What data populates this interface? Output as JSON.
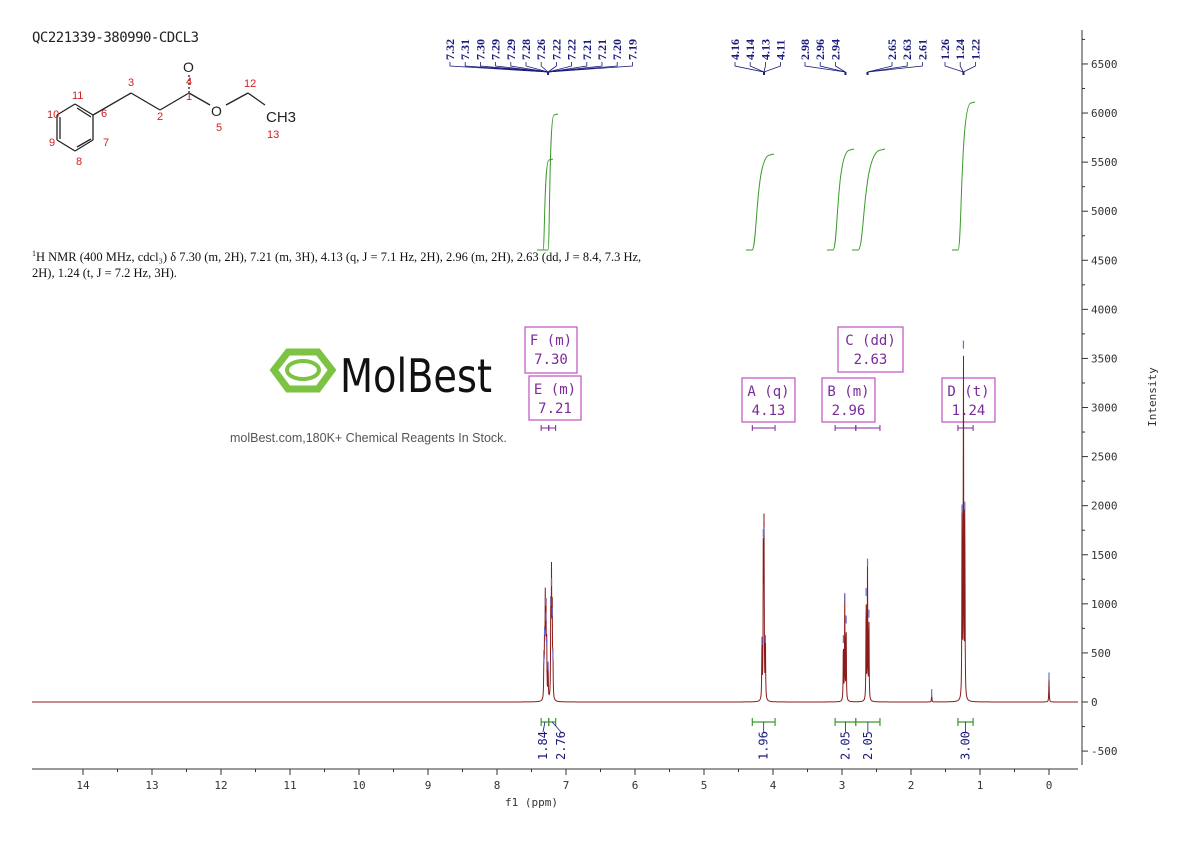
{
  "sample_id": "QC221339-380990-CDCL3",
  "nmr_description": {
    "nucleus_sup": "1",
    "text": "H NMR (400 MHz, cdcl₃) δ 7.30 (m, 2H), 7.21 (m, 3H), 4.13 (q, J = 7.1 Hz, 2H), 2.96 (m, 2H), 2.63 (dd, J = 8.4, 7.3 Hz, 2H), 1.24 (t, J = 7.2 Hz, 3H)."
  },
  "molecule": {
    "atoms": [
      "O",
      "CH3"
    ],
    "atom_numbers": [
      "1",
      "2",
      "3",
      "4",
      "5",
      "6",
      "7",
      "8",
      "9",
      "10",
      "11",
      "12",
      "13"
    ],
    "ester_oxygen": "O"
  },
  "watermark": {
    "logo": "MolBest",
    "tagline": "molBest.com,180K+ Chemical Reagents In Stock."
  },
  "colors": {
    "spectrum": "#8b1a1a",
    "integral": "#3a9a2a",
    "annotation": "#c050c0",
    "peak_label": "#1a1a7a",
    "logo": "#7cc243"
  },
  "chart_data": {
    "type": "line",
    "xlabel": "f1 (ppm)",
    "ylabel": "Intensity",
    "xlim": [
      14.75,
      -0.42
    ],
    "ylim": [
      -650,
      6800
    ],
    "x_ticks": [
      14,
      13,
      12,
      11,
      10,
      9,
      8,
      7,
      6,
      5,
      4,
      3,
      2,
      1,
      0
    ],
    "y_ticks": [
      -500,
      0,
      500,
      1000,
      1500,
      2000,
      2500,
      3000,
      3500,
      4000,
      4500,
      5000,
      5500,
      6000,
      6500
    ],
    "peaks": [
      {
        "ppm": 7.32,
        "height": 420
      },
      {
        "ppm": 7.31,
        "height": 700
      },
      {
        "ppm": 7.3,
        "height": 1000
      },
      {
        "ppm": 7.29,
        "height": 850
      },
      {
        "ppm": 7.28,
        "height": 600
      },
      {
        "ppm": 7.26,
        "height": 350
      },
      {
        "ppm": 7.22,
        "height": 1000
      },
      {
        "ppm": 7.21,
        "height": 1200
      },
      {
        "ppm": 7.2,
        "height": 900
      },
      {
        "ppm": 7.19,
        "height": 450
      },
      {
        "ppm": 4.16,
        "height": 600
      },
      {
        "ppm": 4.14,
        "height": 1700
      },
      {
        "ppm": 4.13,
        "height": 1720
      },
      {
        "ppm": 4.11,
        "height": 620
      },
      {
        "ppm": 2.98,
        "height": 620
      },
      {
        "ppm": 2.96,
        "height": 1050
      },
      {
        "ppm": 2.94,
        "height": 820
      },
      {
        "ppm": 2.65,
        "height": 1100
      },
      {
        "ppm": 2.63,
        "height": 1400
      },
      {
        "ppm": 2.61,
        "height": 880
      },
      {
        "ppm": 1.26,
        "height": 1950
      },
      {
        "ppm": 1.24,
        "height": 3620
      },
      {
        "ppm": 1.22,
        "height": 1980
      },
      {
        "ppm": 1.7,
        "height": 70
      },
      {
        "ppm": 0.0,
        "height": 240
      }
    ],
    "peak_labels": [
      {
        "group": [
          7.32,
          7.31,
          7.3,
          7.29,
          7.29,
          7.28,
          7.26,
          7.22,
          7.22,
          7.21,
          7.21,
          7.2,
          7.19
        ],
        "center": 7.26
      },
      {
        "group": [
          4.16,
          4.14,
          4.13,
          4.11
        ],
        "center": 4.13
      },
      {
        "group": [
          2.98,
          2.96,
          2.94
        ],
        "center": 2.95
      },
      {
        "group": [
          2.65,
          2.63,
          2.61
        ],
        "center": 2.63
      },
      {
        "group": [
          1.26,
          1.24,
          1.22
        ],
        "center": 1.24
      }
    ],
    "multiplets": [
      {
        "label": "F (m)",
        "shift": "7.30",
        "range": [
          7.36,
          7.25
        ]
      },
      {
        "label": "E (m)",
        "shift": "7.21",
        "range": [
          7.25,
          7.15
        ]
      },
      {
        "label": "A (q)",
        "shift": "4.13",
        "range": [
          4.3,
          3.97
        ]
      },
      {
        "label": "B (m)",
        "shift": "2.96",
        "range": [
          3.1,
          2.8
        ]
      },
      {
        "label": "C (dd)",
        "shift": "2.63",
        "range": [
          2.8,
          2.45
        ]
      },
      {
        "label": "D (t)",
        "shift": "1.24",
        "range": [
          1.32,
          1.1
        ]
      }
    ],
    "integrals": [
      {
        "value": "1.84",
        "range": [
          7.36,
          7.25
        ]
      },
      {
        "value": "2.76",
        "range": [
          7.25,
          7.15
        ]
      },
      {
        "value": "1.96",
        "range": [
          4.3,
          3.97
        ]
      },
      {
        "value": "2.05",
        "range": [
          3.1,
          2.8
        ]
      },
      {
        "value": "2.05",
        "range": [
          2.8,
          2.45
        ]
      },
      {
        "value": "3.00",
        "range": [
          1.32,
          1.1
        ]
      }
    ]
  }
}
